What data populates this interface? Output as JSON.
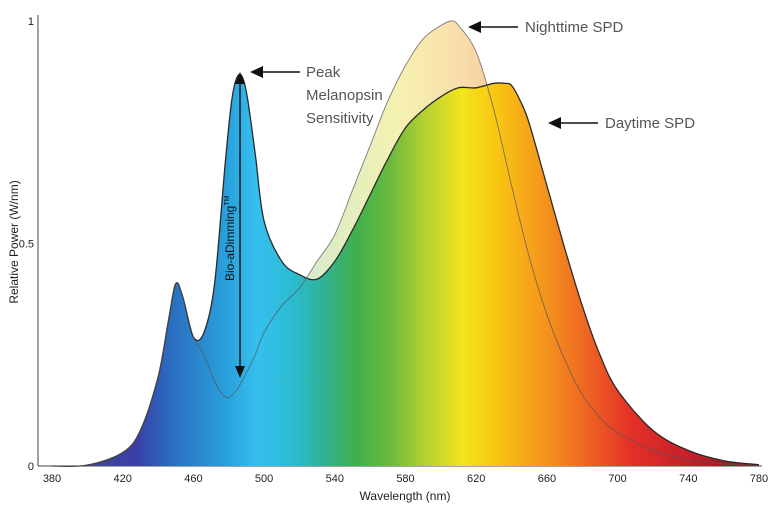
{
  "chart_data": {
    "type": "area",
    "xlabel": "Wavelength (nm)",
    "ylabel": "Relative Power (W/nm)",
    "xlim": [
      380,
      780
    ],
    "ylim": [
      0,
      1
    ],
    "x_ticks": [
      "380",
      "420",
      "460",
      "500",
      "540",
      "580",
      "620",
      "660",
      "700",
      "740",
      "780"
    ],
    "y_ticks": [
      "0",
      "0.5",
      "1"
    ],
    "series": [
      {
        "name": "Daytime SPD",
        "x": [
          380,
          400,
          420,
          430,
          440,
          446,
          450,
          454,
          460,
          466,
          472,
          478,
          482,
          486,
          490,
          495,
          500,
          510,
          520,
          530,
          540,
          550,
          560,
          570,
          580,
          590,
          600,
          610,
          620,
          630,
          636,
          640,
          645,
          650,
          660,
          670,
          680,
          690,
          700,
          720,
          740,
          760,
          780
        ],
        "y": [
          0,
          0.002,
          0.03,
          0.08,
          0.2,
          0.33,
          0.41,
          0.38,
          0.29,
          0.3,
          0.41,
          0.68,
          0.83,
          0.88,
          0.84,
          0.7,
          0.55,
          0.46,
          0.43,
          0.42,
          0.46,
          0.53,
          0.61,
          0.69,
          0.76,
          0.8,
          0.83,
          0.85,
          0.85,
          0.86,
          0.86,
          0.855,
          0.82,
          0.77,
          0.63,
          0.49,
          0.36,
          0.25,
          0.17,
          0.08,
          0.035,
          0.012,
          0.003
        ]
      },
      {
        "name": "Nighttime SPD",
        "x": [
          380,
          400,
          420,
          430,
          440,
          446,
          450,
          454,
          460,
          466,
          472,
          478,
          482,
          486,
          490,
          495,
          500,
          510,
          520,
          530,
          540,
          550,
          560,
          570,
          580,
          590,
          600,
          606,
          610,
          620,
          630,
          640,
          650,
          660,
          670,
          680,
          690,
          700,
          720,
          740,
          760,
          780
        ],
        "y": [
          0,
          0.002,
          0.03,
          0.08,
          0.2,
          0.33,
          0.41,
          0.38,
          0.29,
          0.25,
          0.19,
          0.155,
          0.16,
          0.18,
          0.21,
          0.25,
          0.3,
          0.36,
          0.4,
          0.46,
          0.52,
          0.62,
          0.72,
          0.82,
          0.9,
          0.96,
          0.99,
          1.0,
          0.99,
          0.93,
          0.8,
          0.63,
          0.47,
          0.34,
          0.24,
          0.16,
          0.11,
          0.075,
          0.035,
          0.014,
          0.005,
          0.001
        ]
      }
    ],
    "annotations": {
      "peak": [
        "Peak",
        "Melanopsin",
        "Sensitivity"
      ],
      "night": "Nighttime SPD",
      "day": "Daytime SPD",
      "bio": "Bio-aDimming",
      "tm": "TM"
    }
  }
}
